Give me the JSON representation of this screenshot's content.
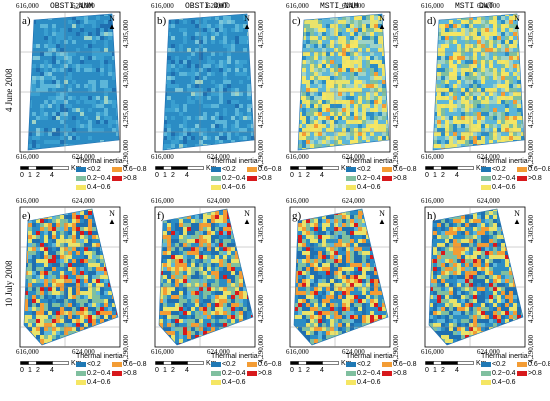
{
  "columns": [
    "OBSTI_NNM",
    "OBSTI DWT",
    "MSTI_NNM",
    "MSTI DWT"
  ],
  "rows": [
    {
      "label": "4 June 2008",
      "panels": [
        "a)",
        "b)",
        "c)",
        "d)"
      ]
    },
    {
      "label": "10 July 2008",
      "panels": [
        "e)",
        "f)",
        "g)",
        "h)"
      ]
    }
  ],
  "x_ticks": [
    "616,000",
    "624,000"
  ],
  "y_ticks": [
    "4,305,000",
    "4,300,000",
    "4,295,000",
    "4,290,000"
  ],
  "north_label": "N",
  "scalebar": {
    "ticks": [
      "0",
      "1",
      "2",
      "4"
    ],
    "unit": "Km"
  },
  "legend": {
    "title": "Thermal inertia",
    "items": [
      {
        "label": "<0.2",
        "color": "#1f78b4"
      },
      {
        "label": "0.6~0.8",
        "color": "#f39c34"
      },
      {
        "label": "0.2~0.4",
        "color": "#7fbf9f"
      },
      {
        "label": ">0.8",
        "color": "#d7191c"
      },
      {
        "label": "0.4~0.6",
        "color": "#f5e663"
      }
    ]
  },
  "map_palettes": {
    "obsti_june": [
      "#2b8cc4",
      "#3a9fd0",
      "#5cb6d9",
      "#1f6fb0",
      "#7cc6da",
      "#9fd3c6"
    ],
    "msti_june": [
      "#5cb6d9",
      "#9fd3c6",
      "#e9e36a",
      "#f5e663",
      "#7fbf9f",
      "#2b8cc4",
      "#f39c34"
    ],
    "july": [
      "#1f6fb0",
      "#2b8cc4",
      "#7fbf9f",
      "#e9e36a",
      "#f39c34",
      "#d7191c",
      "#5cb6d9"
    ]
  }
}
